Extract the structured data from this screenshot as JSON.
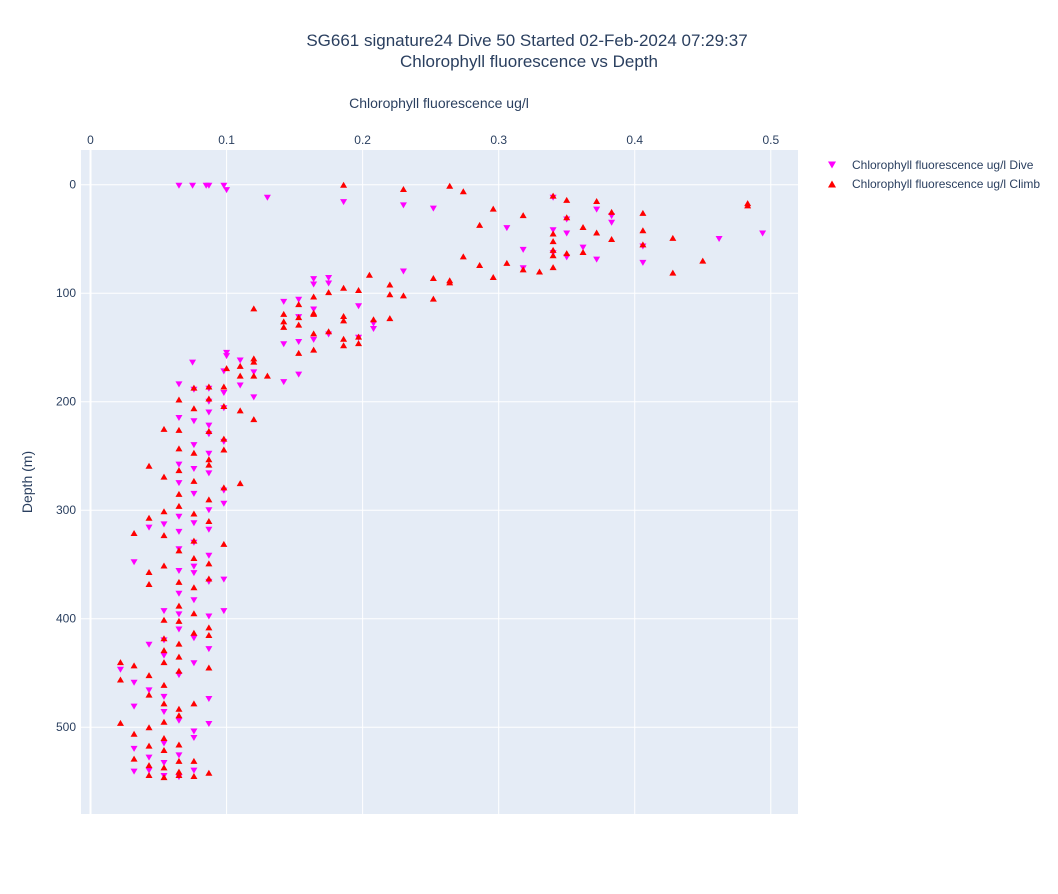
{
  "colors": {
    "dive": "#ff00ff",
    "climb": "#ff0000",
    "plot_bg": "#e5ecf6",
    "grid": "#ffffff",
    "text": "#2a3f5f"
  },
  "chart_data": {
    "type": "scatter",
    "title": "SG661 signature24 Dive 50 Started 02-Feb-2024 07:29:37",
    "subtitle": "Chlorophyll fluorescence vs Depth",
    "xlabel": "Chlorophyll fluorescence ug/l",
    "ylabel": "Depth (m)",
    "xaxis_side": "top",
    "yaxis_reversed": true,
    "xlim": [
      -0.007,
      0.52
    ],
    "ylim": [
      -32,
      580
    ],
    "xticks": [
      "0",
      "0.1",
      "0.2",
      "0.3",
      "0.4",
      "0.5"
    ],
    "xtick_values": [
      0,
      0.1,
      0.2,
      0.3,
      0.4,
      0.5
    ],
    "yticks": [
      "0",
      "100",
      "200",
      "300",
      "400",
      "500"
    ],
    "ytick_values": [
      0,
      100,
      200,
      300,
      400,
      500
    ],
    "grid": true,
    "legend_position": "top-right",
    "series": [
      {
        "name": "Chlorophyll fluorescence ug/l Dive",
        "marker": "triangle-down",
        "points": [
          [
            0.065,
            1
          ],
          [
            0.075,
            1
          ],
          [
            0.085,
            1
          ],
          [
            0.087,
            1
          ],
          [
            0.098,
            1
          ],
          [
            0.1,
            5
          ],
          [
            0.13,
            12
          ],
          [
            0.186,
            16
          ],
          [
            0.23,
            19
          ],
          [
            0.252,
            22
          ],
          [
            0.34,
            12
          ],
          [
            0.35,
            32
          ],
          [
            0.372,
            23
          ],
          [
            0.383,
            29
          ],
          [
            0.34,
            42
          ],
          [
            0.306,
            40
          ],
          [
            0.35,
            45
          ],
          [
            0.383,
            35
          ],
          [
            0.462,
            50
          ],
          [
            0.494,
            45
          ],
          [
            0.406,
            57
          ],
          [
            0.318,
            60
          ],
          [
            0.34,
            63
          ],
          [
            0.362,
            58
          ],
          [
            0.35,
            67
          ],
          [
            0.372,
            69
          ],
          [
            0.406,
            72
          ],
          [
            0.318,
            77
          ],
          [
            0.23,
            80
          ],
          [
            0.175,
            86
          ],
          [
            0.175,
            91
          ],
          [
            0.164,
            87
          ],
          [
            0.164,
            92
          ],
          [
            0.153,
            106
          ],
          [
            0.142,
            108
          ],
          [
            0.164,
            115
          ],
          [
            0.153,
            122
          ],
          [
            0.197,
            112
          ],
          [
            0.208,
            128
          ],
          [
            0.208,
            133
          ],
          [
            0.175,
            138
          ],
          [
            0.164,
            143
          ],
          [
            0.142,
            147
          ],
          [
            0.153,
            145
          ],
          [
            0.197,
            141
          ],
          [
            0.1,
            155
          ],
          [
            0.1,
            158
          ],
          [
            0.11,
            162
          ],
          [
            0.075,
            164
          ],
          [
            0.098,
            172
          ],
          [
            0.12,
            173
          ],
          [
            0.153,
            175
          ],
          [
            0.142,
            182
          ],
          [
            0.11,
            185
          ],
          [
            0.065,
            184
          ],
          [
            0.087,
            188
          ],
          [
            0.076,
            189
          ],
          [
            0.12,
            196
          ],
          [
            0.098,
            192
          ],
          [
            0.087,
            200
          ],
          [
            0.098,
            206
          ],
          [
            0.087,
            210
          ],
          [
            0.065,
            215
          ],
          [
            0.076,
            218
          ],
          [
            0.087,
            222
          ],
          [
            0.087,
            230
          ],
          [
            0.098,
            237
          ],
          [
            0.076,
            240
          ],
          [
            0.087,
            248
          ],
          [
            0.065,
            258
          ],
          [
            0.076,
            262
          ],
          [
            0.087,
            266
          ],
          [
            0.065,
            275
          ],
          [
            0.076,
            285
          ],
          [
            0.098,
            282
          ],
          [
            0.098,
            294
          ],
          [
            0.087,
            300
          ],
          [
            0.065,
            306
          ],
          [
            0.054,
            313
          ],
          [
            0.043,
            316
          ],
          [
            0.076,
            312
          ],
          [
            0.065,
            320
          ],
          [
            0.087,
            318
          ],
          [
            0.076,
            330
          ],
          [
            0.065,
            336
          ],
          [
            0.087,
            342
          ],
          [
            0.032,
            348
          ],
          [
            0.076,
            352
          ],
          [
            0.065,
            356
          ],
          [
            0.076,
            358
          ],
          [
            0.087,
            366
          ],
          [
            0.098,
            364
          ],
          [
            0.065,
            377
          ],
          [
            0.076,
            383
          ],
          [
            0.054,
            393
          ],
          [
            0.065,
            396
          ],
          [
            0.087,
            398
          ],
          [
            0.098,
            393
          ],
          [
            0.065,
            410
          ],
          [
            0.076,
            418
          ],
          [
            0.054,
            420
          ],
          [
            0.043,
            424
          ],
          [
            0.087,
            428
          ],
          [
            0.054,
            434
          ],
          [
            0.076,
            441
          ],
          [
            0.065,
            452
          ],
          [
            0.022,
            447
          ],
          [
            0.032,
            459
          ],
          [
            0.043,
            466
          ],
          [
            0.054,
            472
          ],
          [
            0.032,
            481
          ],
          [
            0.054,
            486
          ],
          [
            0.087,
            474
          ],
          [
            0.065,
            494
          ],
          [
            0.087,
            497
          ],
          [
            0.076,
            504
          ],
          [
            0.076,
            510
          ],
          [
            0.054,
            515
          ],
          [
            0.032,
            520
          ],
          [
            0.043,
            528
          ],
          [
            0.065,
            526
          ],
          [
            0.054,
            533
          ],
          [
            0.043,
            540
          ],
          [
            0.032,
            541
          ],
          [
            0.065,
            546
          ],
          [
            0.076,
            540
          ],
          [
            0.054,
            545
          ]
        ]
      },
      {
        "name": "Chlorophyll fluorescence ug/l Climb",
        "marker": "triangle-up",
        "points": [
          [
            0.186,
            0
          ],
          [
            0.264,
            1
          ],
          [
            0.23,
            4
          ],
          [
            0.274,
            6
          ],
          [
            0.34,
            10
          ],
          [
            0.35,
            14
          ],
          [
            0.372,
            15
          ],
          [
            0.483,
            17
          ],
          [
            0.483,
            19
          ],
          [
            0.296,
            22
          ],
          [
            0.383,
            25
          ],
          [
            0.406,
            26
          ],
          [
            0.318,
            28
          ],
          [
            0.35,
            30
          ],
          [
            0.286,
            37
          ],
          [
            0.362,
            39
          ],
          [
            0.406,
            42
          ],
          [
            0.34,
            45
          ],
          [
            0.372,
            44
          ],
          [
            0.383,
            50
          ],
          [
            0.428,
            49
          ],
          [
            0.34,
            52
          ],
          [
            0.406,
            55
          ],
          [
            0.34,
            60
          ],
          [
            0.35,
            63
          ],
          [
            0.34,
            65
          ],
          [
            0.274,
            66
          ],
          [
            0.362,
            62
          ],
          [
            0.45,
            70
          ],
          [
            0.306,
            72
          ],
          [
            0.286,
            74
          ],
          [
            0.34,
            76
          ],
          [
            0.318,
            78
          ],
          [
            0.33,
            80
          ],
          [
            0.428,
            81
          ],
          [
            0.296,
            85
          ],
          [
            0.205,
            83
          ],
          [
            0.252,
            86
          ],
          [
            0.264,
            88
          ],
          [
            0.264,
            90
          ],
          [
            0.22,
            92
          ],
          [
            0.197,
            97
          ],
          [
            0.186,
            95
          ],
          [
            0.22,
            101
          ],
          [
            0.23,
            102
          ],
          [
            0.252,
            105
          ],
          [
            0.175,
            99
          ],
          [
            0.164,
            103
          ],
          [
            0.153,
            110
          ],
          [
            0.164,
            118
          ],
          [
            0.12,
            114
          ],
          [
            0.142,
            119
          ],
          [
            0.153,
            122
          ],
          [
            0.164,
            119
          ],
          [
            0.186,
            121
          ],
          [
            0.186,
            125
          ],
          [
            0.208,
            124
          ],
          [
            0.22,
            123
          ],
          [
            0.142,
            126
          ],
          [
            0.153,
            129
          ],
          [
            0.142,
            131
          ],
          [
            0.175,
            135
          ],
          [
            0.164,
            137
          ],
          [
            0.197,
            140
          ],
          [
            0.186,
            142
          ],
          [
            0.197,
            146
          ],
          [
            0.186,
            148
          ],
          [
            0.164,
            152
          ],
          [
            0.153,
            155
          ],
          [
            0.12,
            160
          ],
          [
            0.12,
            163
          ],
          [
            0.11,
            167
          ],
          [
            0.1,
            169
          ],
          [
            0.12,
            176
          ],
          [
            0.11,
            176
          ],
          [
            0.13,
            176
          ],
          [
            0.087,
            186
          ],
          [
            0.076,
            187
          ],
          [
            0.098,
            186
          ],
          [
            0.065,
            198
          ],
          [
            0.087,
            197
          ],
          [
            0.076,
            206
          ],
          [
            0.098,
            204
          ],
          [
            0.11,
            208
          ],
          [
            0.12,
            216
          ],
          [
            0.065,
            226
          ],
          [
            0.054,
            225
          ],
          [
            0.087,
            227
          ],
          [
            0.098,
            234
          ],
          [
            0.065,
            243
          ],
          [
            0.076,
            247
          ],
          [
            0.087,
            253
          ],
          [
            0.098,
            244
          ],
          [
            0.043,
            259
          ],
          [
            0.065,
            263
          ],
          [
            0.087,
            258
          ],
          [
            0.054,
            269
          ],
          [
            0.076,
            273
          ],
          [
            0.11,
            275
          ],
          [
            0.065,
            285
          ],
          [
            0.087,
            290
          ],
          [
            0.098,
            279
          ],
          [
            0.043,
            307
          ],
          [
            0.054,
            301
          ],
          [
            0.065,
            296
          ],
          [
            0.076,
            303
          ],
          [
            0.087,
            310
          ],
          [
            0.032,
            321
          ],
          [
            0.054,
            323
          ],
          [
            0.076,
            328
          ],
          [
            0.098,
            331
          ],
          [
            0.065,
            337
          ],
          [
            0.076,
            344
          ],
          [
            0.087,
            349
          ],
          [
            0.054,
            351
          ],
          [
            0.043,
            357
          ],
          [
            0.065,
            366
          ],
          [
            0.076,
            371
          ],
          [
            0.043,
            368
          ],
          [
            0.087,
            363
          ],
          [
            0.065,
            388
          ],
          [
            0.076,
            395
          ],
          [
            0.054,
            401
          ],
          [
            0.065,
            402
          ],
          [
            0.087,
            408
          ],
          [
            0.076,
            413
          ],
          [
            0.087,
            415
          ],
          [
            0.054,
            418
          ],
          [
            0.065,
            423
          ],
          [
            0.054,
            429
          ],
          [
            0.065,
            435
          ],
          [
            0.054,
            440
          ],
          [
            0.022,
            440
          ],
          [
            0.032,
            443
          ],
          [
            0.087,
            445
          ],
          [
            0.022,
            456
          ],
          [
            0.043,
            452
          ],
          [
            0.054,
            461
          ],
          [
            0.065,
            448
          ],
          [
            0.043,
            470
          ],
          [
            0.054,
            478
          ],
          [
            0.065,
            483
          ],
          [
            0.076,
            478
          ],
          [
            0.065,
            489
          ],
          [
            0.054,
            495
          ],
          [
            0.022,
            496
          ],
          [
            0.043,
            500
          ],
          [
            0.032,
            506
          ],
          [
            0.054,
            510
          ],
          [
            0.065,
            516
          ],
          [
            0.043,
            517
          ],
          [
            0.054,
            521
          ],
          [
            0.032,
            529
          ],
          [
            0.065,
            531
          ],
          [
            0.043,
            535
          ],
          [
            0.054,
            537
          ],
          [
            0.076,
            531
          ],
          [
            0.087,
            542
          ],
          [
            0.065,
            544
          ],
          [
            0.054,
            546
          ],
          [
            0.076,
            545
          ],
          [
            0.043,
            544
          ],
          [
            0.065,
            541
          ]
        ]
      }
    ]
  }
}
